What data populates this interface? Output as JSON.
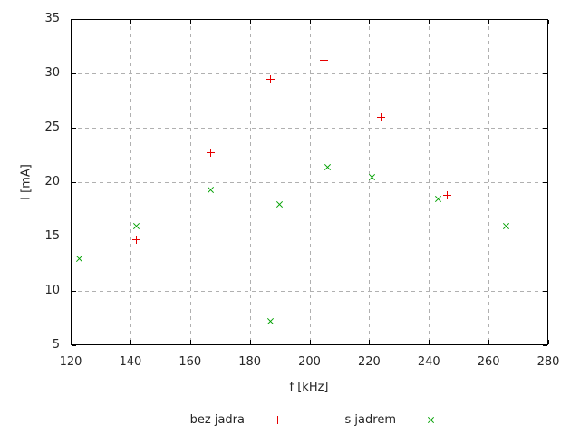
{
  "chart_data": {
    "type": "scatter",
    "title": "",
    "xlabel": "f [kHz]",
    "ylabel": "I [mA]",
    "xlim": [
      120,
      280
    ],
    "ylim": [
      5,
      35
    ],
    "xticks": [
      120,
      140,
      160,
      180,
      200,
      220,
      240,
      260,
      280
    ],
    "yticks": [
      5,
      10,
      15,
      20,
      25,
      30,
      35
    ],
    "grid": true,
    "legend_position": "below-plot",
    "series": [
      {
        "name": "bez jadra",
        "marker": "plus",
        "color": "#e60000",
        "points": [
          [
            142,
            14.7
          ],
          [
            167,
            22.7
          ],
          [
            187,
            29.5
          ],
          [
            205,
            31.2
          ],
          [
            224,
            26.0
          ],
          [
            246,
            18.8
          ]
        ]
      },
      {
        "name": "s jadrem",
        "marker": "cross",
        "color": "#00a000",
        "points": [
          [
            123,
            13.0
          ],
          [
            142,
            16.0
          ],
          [
            167,
            19.3
          ],
          [
            187,
            7.2
          ],
          [
            190,
            18.0
          ],
          [
            206,
            21.4
          ],
          [
            221,
            20.5
          ],
          [
            243,
            18.5
          ],
          [
            266,
            16.0
          ]
        ]
      }
    ]
  },
  "colors": {
    "background": "#ffffff",
    "border": "#000000",
    "grid": "#b0b0b0",
    "text": "#262626"
  }
}
